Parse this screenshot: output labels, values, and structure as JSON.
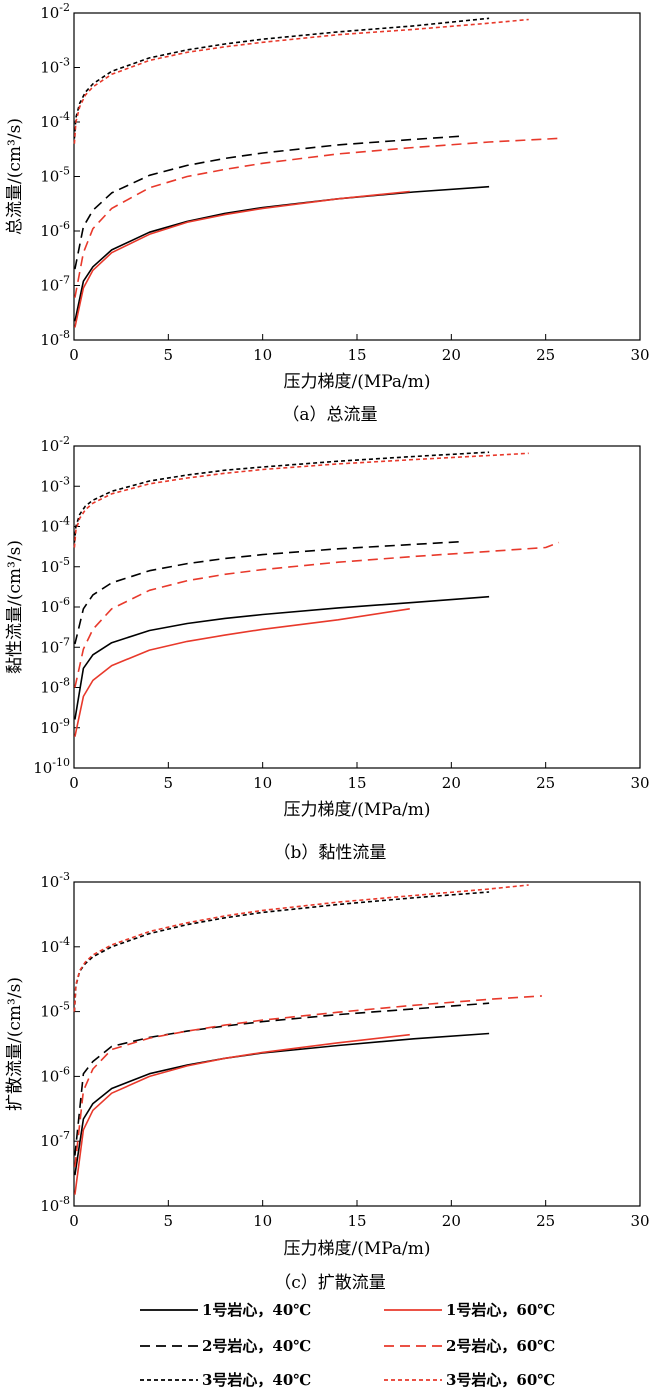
{
  "figure": {
    "legend": [
      {
        "label": "1号岩心，40℃",
        "color": "#000000",
        "dash": "solid"
      },
      {
        "label": "1号岩心，60℃",
        "color": "#e8392b",
        "dash": "solid"
      },
      {
        "label": "2号岩心，40℃",
        "color": "#000000",
        "dash": "long"
      },
      {
        "label": "2号岩心，60℃",
        "color": "#e8392b",
        "dash": "long"
      },
      {
        "label": "3号岩心，40℃",
        "color": "#000000",
        "dash": "short"
      },
      {
        "label": "3号岩心，60℃",
        "color": "#e8392b",
        "dash": "short"
      }
    ]
  },
  "chart_data": [
    {
      "type": "line",
      "caption": "（a）总流量",
      "xlabel": "压力梯度/(MPa/m)",
      "ylabel": "总流量/(cm³/s)",
      "xlim": [
        0,
        30
      ],
      "ylim": [
        1e-08,
        0.01
      ],
      "yscale": "log",
      "xticks": [
        "0",
        "5",
        "10",
        "15",
        "20",
        "25",
        "30"
      ],
      "yticks": [
        {
          "base": "10",
          "exp": "-8"
        },
        {
          "base": "10",
          "exp": "-7"
        },
        {
          "base": "10",
          "exp": "-6"
        },
        {
          "base": "10",
          "exp": "-5"
        },
        {
          "base": "10",
          "exp": "-4"
        },
        {
          "base": "10",
          "exp": "-3"
        },
        {
          "base": "10",
          "exp": "-2"
        }
      ],
      "series": [
        {
          "label": "1号岩心，40℃",
          "x": [
            0.05,
            0.5,
            1,
            2,
            4,
            6,
            8,
            10,
            14,
            18,
            22
          ],
          "y": [
            2.2e-08,
            1.2e-07,
            2.2e-07,
            4.5e-07,
            9.5e-07,
            1.5e-06,
            2.1e-06,
            2.7e-06,
            3.9e-06,
            5.2e-06,
            6.5e-06
          ]
        },
        {
          "label": "1号岩心，60℃",
          "x": [
            0.05,
            0.5,
            1,
            2,
            4,
            6,
            8,
            10,
            14,
            17.8
          ],
          "y": [
            1.7e-08,
            9e-08,
            1.9e-07,
            4e-07,
            8.7e-07,
            1.45e-06,
            2e-06,
            2.6e-06,
            3.9e-06,
            5.3e-06
          ]
        },
        {
          "label": "2号岩心，40℃",
          "x": [
            0.05,
            0.5,
            1,
            2,
            4,
            6,
            8,
            10,
            14,
            18,
            20.5
          ],
          "y": [
            2e-07,
            1.2e-06,
            2.4e-06,
            5e-06,
            1.05e-05,
            1.6e-05,
            2.15e-05,
            2.7e-05,
            3.8e-05,
            4.8e-05,
            5.5e-05
          ]
        },
        {
          "label": "2号岩心，60℃",
          "x": [
            0.05,
            0.5,
            1,
            2,
            4,
            6,
            8,
            10,
            14,
            18,
            22,
            25.7
          ],
          "y": [
            6e-08,
            4e-07,
            1.1e-06,
            2.6e-06,
            6.2e-06,
            1e-05,
            1.35e-05,
            1.75e-05,
            2.6e-05,
            3.4e-05,
            4.3e-05,
            5e-05
          ]
        },
        {
          "label": "3号岩心，40℃",
          "x": [
            0.02,
            0.1,
            0.3,
            0.6,
            1,
            2,
            4,
            6,
            8,
            10,
            14,
            18,
            22
          ],
          "y": [
            5e-05,
            0.00012,
            0.00022,
            0.00035,
            0.0005,
            0.00085,
            0.0015,
            0.0021,
            0.0027,
            0.0033,
            0.0045,
            0.0058,
            0.008
          ]
        },
        {
          "label": "3号岩心，60℃",
          "x": [
            0.02,
            0.1,
            0.3,
            0.6,
            1,
            2,
            4,
            6,
            8,
            10,
            14,
            18,
            22,
            24.1
          ],
          "y": [
            4e-05,
            0.0001,
            0.00019,
            0.00031,
            0.00044,
            0.00075,
            0.00135,
            0.0019,
            0.0024,
            0.0029,
            0.004,
            0.005,
            0.0065,
            0.0076
          ]
        }
      ]
    },
    {
      "type": "line",
      "caption": "（b）黏性流量",
      "xlabel": "压力梯度/(MPa/m)",
      "ylabel": "黏性流量/(cm³/s)",
      "xlim": [
        0,
        30
      ],
      "ylim": [
        1e-10,
        0.01
      ],
      "yscale": "log",
      "xticks": [
        "0",
        "5",
        "10",
        "15",
        "20",
        "25",
        "30"
      ],
      "yticks": [
        {
          "base": "10",
          "exp": "-10"
        },
        {
          "base": "10",
          "exp": "-9"
        },
        {
          "base": "10",
          "exp": "-8"
        },
        {
          "base": "10",
          "exp": "-7"
        },
        {
          "base": "10",
          "exp": "-6"
        },
        {
          "base": "10",
          "exp": "-5"
        },
        {
          "base": "10",
          "exp": "-4"
        },
        {
          "base": "10",
          "exp": "-3"
        },
        {
          "base": "10",
          "exp": "-2"
        }
      ],
      "series": [
        {
          "label": "1号岩心，40℃",
          "x": [
            0.05,
            0.5,
            1,
            2,
            4,
            6,
            8,
            10,
            14,
            18,
            22
          ],
          "y": [
            1.6e-09,
            3e-08,
            6.5e-08,
            1.3e-07,
            2.6e-07,
            3.9e-07,
            5.2e-07,
            6.5e-07,
            9.5e-07,
            1.3e-06,
            1.8e-06
          ]
        },
        {
          "label": "1号岩心，60℃",
          "x": [
            0.05,
            0.5,
            1,
            2,
            4,
            6,
            8,
            10,
            14,
            17.8
          ],
          "y": [
            6e-10,
            6e-09,
            1.5e-08,
            3.5e-08,
            8.5e-08,
            1.4e-07,
            2e-07,
            2.8e-07,
            4.8e-07,
            9e-07
          ]
        },
        {
          "label": "2号岩心，40℃",
          "x": [
            0.05,
            0.5,
            1,
            2,
            4,
            6,
            8,
            10,
            14,
            18,
            20.5
          ],
          "y": [
            1.2e-07,
            9e-07,
            2e-06,
            4e-06,
            8e-06,
            1.2e-05,
            1.6e-05,
            2e-05,
            2.8e-05,
            3.6e-05,
            4.2e-05
          ]
        },
        {
          "label": "2号岩心，60℃",
          "x": [
            0.05,
            0.5,
            1,
            2,
            4,
            6,
            8,
            10,
            14,
            18,
            22,
            25,
            25.7
          ],
          "y": [
            1e-08,
            9e-08,
            2.8e-07,
            9e-07,
            2.6e-06,
            4.5e-06,
            6.5e-06,
            8.5e-06,
            1.3e-05,
            1.8e-05,
            2.4e-05,
            3e-05,
            4e-05
          ]
        },
        {
          "label": "3号岩心，40℃",
          "x": [
            0.02,
            0.1,
            0.3,
            0.6,
            1,
            2,
            4,
            6,
            8,
            10,
            14,
            18,
            22
          ],
          "y": [
            4e-05,
            0.0001,
            0.0002,
            0.00032,
            0.00045,
            0.00075,
            0.00135,
            0.0019,
            0.0025,
            0.003,
            0.0042,
            0.0055,
            0.007
          ]
        },
        {
          "label": "3号岩心，60℃",
          "x": [
            0.02,
            0.1,
            0.3,
            0.6,
            1,
            2,
            4,
            6,
            8,
            10,
            14,
            18,
            22,
            24.1
          ],
          "y": [
            3e-05,
            8e-05,
            0.00016,
            0.00026,
            0.00038,
            0.00065,
            0.00115,
            0.0016,
            0.0021,
            0.0026,
            0.0036,
            0.0046,
            0.0058,
            0.0066
          ]
        }
      ]
    },
    {
      "type": "line",
      "caption": "（c）扩散流量",
      "xlabel": "压力梯度/(MPa/m)",
      "ylabel": "扩散流量/(cm³/s)",
      "xlim": [
        0,
        30
      ],
      "ylim": [
        1e-08,
        0.001
      ],
      "yscale": "log",
      "xticks": [
        "0",
        "5",
        "10",
        "15",
        "20",
        "25",
        "30"
      ],
      "yticks": [
        {
          "base": "10",
          "exp": "-8"
        },
        {
          "base": "10",
          "exp": "-7"
        },
        {
          "base": "10",
          "exp": "-6"
        },
        {
          "base": "10",
          "exp": "-5"
        },
        {
          "base": "10",
          "exp": "-4"
        },
        {
          "base": "10",
          "exp": "-3"
        }
      ],
      "series": [
        {
          "label": "1号岩心，40℃",
          "x": [
            0.05,
            0.5,
            1,
            2,
            4,
            6,
            8,
            10,
            14,
            18,
            22
          ],
          "y": [
            3e-08,
            2.2e-07,
            3.8e-07,
            6.5e-07,
            1.1e-06,
            1.5e-06,
            1.9e-06,
            2.3e-06,
            3e-06,
            3.8e-06,
            4.6e-06
          ]
        },
        {
          "label": "1号岩心，60℃",
          "x": [
            0.05,
            0.5,
            1,
            2,
            4,
            6,
            8,
            10,
            14,
            17.8
          ],
          "y": [
            1.5e-08,
            1.5e-07,
            3e-07,
            5.5e-07,
            1e-06,
            1.45e-06,
            1.9e-06,
            2.35e-06,
            3.3e-06,
            4.4e-06
          ]
        },
        {
          "label": "2号岩心，40℃",
          "x": [
            0.05,
            0.5,
            1,
            2,
            4,
            6,
            8,
            10,
            14,
            18,
            22
          ],
          "y": [
            6e-08,
            1.1e-06,
            1.7e-06,
            2.9e-06,
            4e-06,
            5e-06,
            6e-06,
            7e-06,
            9e-06,
            1.1e-05,
            1.35e-05
          ]
        },
        {
          "label": "2号岩心，60℃",
          "x": [
            0.05,
            0.5,
            1,
            2,
            4,
            6,
            8,
            10,
            14,
            18,
            22,
            24.8
          ],
          "y": [
            4e-08,
            6e-07,
            1.3e-06,
            2.6e-06,
            3.9e-06,
            5e-06,
            6.2e-06,
            7.4e-06,
            9.8e-06,
            1.25e-05,
            1.55e-05,
            1.75e-05
          ]
        },
        {
          "label": "3号岩心，40℃",
          "x": [
            0.02,
            0.1,
            0.3,
            0.6,
            1,
            2,
            4,
            6,
            8,
            10,
            14,
            18,
            22
          ],
          "y": [
            1e-05,
            2.5e-05,
            4.2e-05,
            5.5e-05,
            7e-05,
            0.0001,
            0.00016,
            0.00022,
            0.00028,
            0.00034,
            0.00045,
            0.00057,
            0.0007
          ]
        },
        {
          "label": "3号岩心，60℃",
          "x": [
            0.02,
            0.1,
            0.3,
            0.6,
            1,
            2,
            4,
            6,
            8,
            10,
            14,
            18,
            22,
            24.1
          ],
          "y": [
            1e-05,
            2.6e-05,
            4.3e-05,
            5.8e-05,
            7.5e-05,
            0.000107,
            0.000172,
            0.000235,
            0.0003,
            0.000365,
            0.00049,
            0.00062,
            0.00078,
            0.0009
          ]
        }
      ]
    }
  ]
}
